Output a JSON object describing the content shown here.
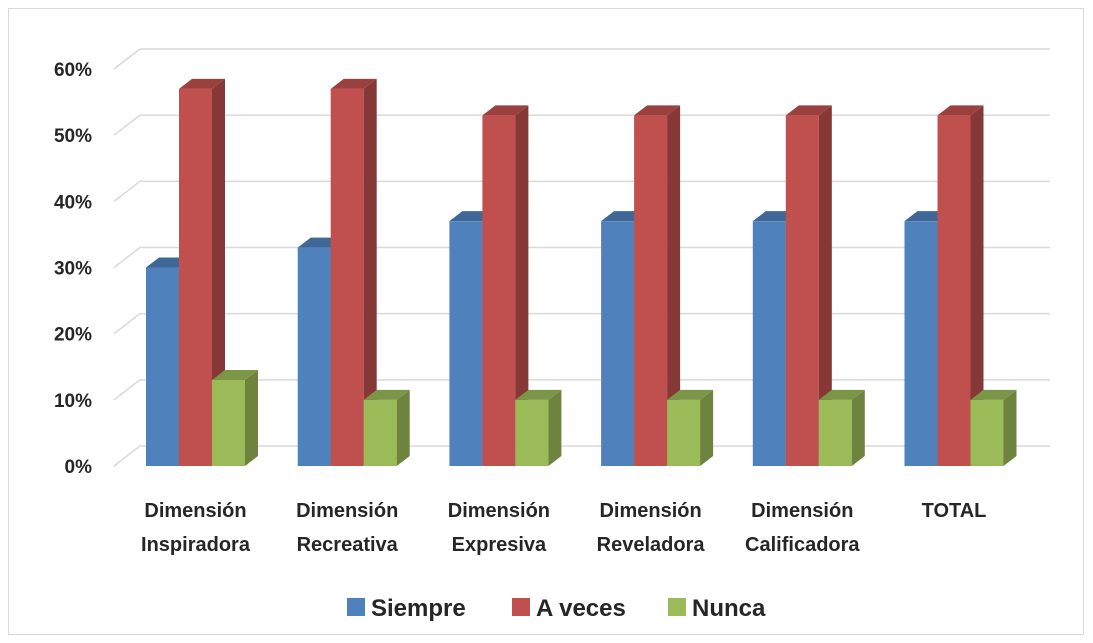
{
  "chart_data": {
    "type": "bar",
    "style": "3d-clustered-column",
    "categories": [
      [
        "Dimensión",
        "Inspiradora"
      ],
      [
        "Dimensión",
        "Recreativa"
      ],
      [
        "Dimensión",
        "Expresiva"
      ],
      [
        "Dimensión",
        "Reveladora"
      ],
      [
        "Dimensión",
        "Calificadora"
      ],
      [
        "TOTAL"
      ]
    ],
    "series": [
      {
        "name": "Siempre",
        "color": "#4f81bd",
        "values": [
          0.3,
          0.33,
          0.37,
          0.37,
          0.37,
          0.37
        ]
      },
      {
        "name": "A veces",
        "color": "#c0504d",
        "values": [
          0.57,
          0.57,
          0.53,
          0.53,
          0.53,
          0.53
        ]
      },
      {
        "name": "Nunca",
        "color": "#9bbb59",
        "values": [
          0.13,
          0.1,
          0.1,
          0.1,
          0.1,
          0.1
        ]
      }
    ],
    "y_ticks": [
      "0%",
      "10%",
      "20%",
      "30%",
      "40%",
      "50%",
      "60%"
    ],
    "ylim": [
      0,
      0.6
    ],
    "grid": true,
    "legend": "bottom-center",
    "title": "",
    "xlabel": "",
    "ylabel": ""
  }
}
